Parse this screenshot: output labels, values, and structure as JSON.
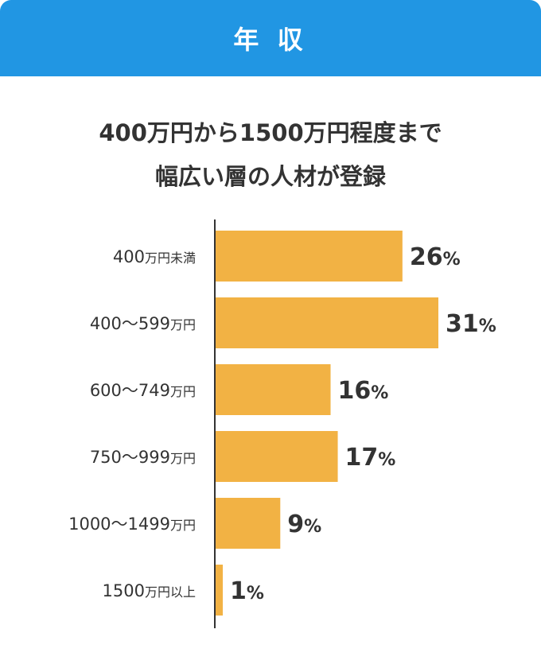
{
  "header": {
    "title": "年 収",
    "background": "#2196e3"
  },
  "headline": {
    "line1": "400万円から1500万円程度まで",
    "line2": "幅広い層の人材が登録"
  },
  "chart_data": {
    "type": "bar",
    "orientation": "horizontal",
    "categories": [
      [
        "400",
        "万円未満"
      ],
      [
        "400〜599",
        "万円"
      ],
      [
        "600〜749",
        "万円"
      ],
      [
        "750〜999",
        "万円"
      ],
      [
        "1000〜1499",
        "万円"
      ],
      [
        "1500",
        "万円以上"
      ]
    ],
    "values": [
      26,
      31,
      16,
      17,
      9,
      1
    ],
    "unit": "%",
    "bar_color": "#f2b244",
    "xlim": [
      0,
      31
    ],
    "grid": false
  }
}
